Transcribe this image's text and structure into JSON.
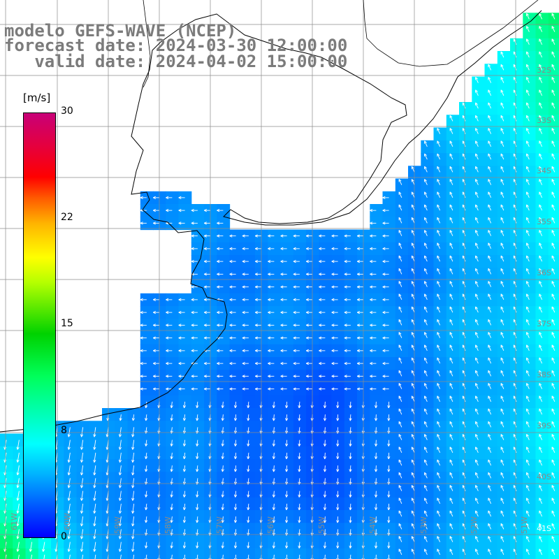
{
  "header": {
    "line1": "modelo GEFS-WAVE (NCEP)",
    "line2": "forecast date: 2024-03-30 12:00:00",
    "line3": "   valid date: 2024-04-02 15:00:00"
  },
  "colorbar": {
    "unit": "[m/s]",
    "ticks": [
      "30",
      "22",
      "15",
      "8",
      "0"
    ],
    "colors": [
      "#0000ff",
      "#00b4ff",
      "#00ffff",
      "#00ff5a",
      "#00d200",
      "#b4ff00",
      "#ffff00",
      "#ffb400",
      "#ff5a00",
      "#ff0000",
      "#c80078"
    ]
  },
  "grid": {
    "lat_labels": [
      "32S",
      "33S",
      "34S",
      "35S",
      "36S",
      "37S",
      "38S",
      "39S",
      "40S",
      "41S"
    ],
    "lon_labels": [
      "61W",
      "60W",
      "59W",
      "58W",
      "57W",
      "56W",
      "55W",
      "54W",
      "53W",
      "52W",
      "51W"
    ]
  },
  "colors": {
    "land": "#ffffff",
    "coastline": "#000000",
    "gridline": "#8c8c8c",
    "arrow": "#ffffff",
    "title": "#7b7b7b"
  }
}
